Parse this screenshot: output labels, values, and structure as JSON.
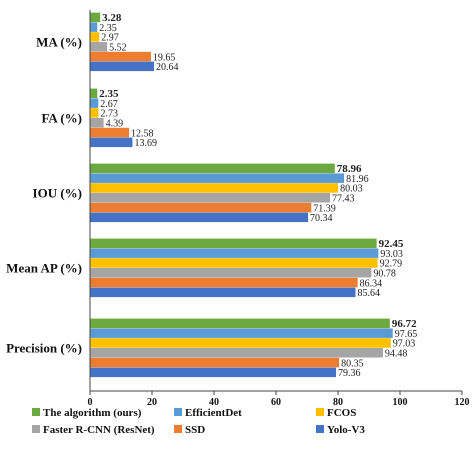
{
  "chart_data": {
    "type": "bar",
    "orientation": "horizontal",
    "categories": [
      "MA (%)",
      "FA (%)",
      "IOU (%)",
      "Mean AP (%)",
      "Precision (%)"
    ],
    "series": [
      {
        "name": "The algorithm (ours)",
        "color": "#6aaa3f",
        "values": [
          3.28,
          2.35,
          78.96,
          92.45,
          96.72
        ]
      },
      {
        "name": "EfficientDet",
        "color": "#5b9bd5",
        "values": [
          2.35,
          2.67,
          81.96,
          93.03,
          97.65
        ]
      },
      {
        "name": "FCOS",
        "color": "#ffc000",
        "values": [
          2.97,
          2.73,
          80.03,
          92.79,
          97.03
        ]
      },
      {
        "name": "Faster R-CNN (ResNet)",
        "color": "#a5a5a5",
        "values": [
          5.52,
          4.39,
          77.43,
          90.78,
          94.48
        ]
      },
      {
        "name": "SSD",
        "color": "#ed7d31",
        "values": [
          19.65,
          12.58,
          71.39,
          86.34,
          80.35
        ]
      },
      {
        "name": "Yolo-V3",
        "color": "#4472c4",
        "values": [
          20.64,
          13.69,
          70.34,
          85.64,
          79.36
        ]
      }
    ],
    "value_labels": [
      [
        "3.28",
        "2.35",
        "2.97",
        "5.52",
        "19.65",
        "20.64"
      ],
      [
        "2.35",
        "2.67",
        "2.73",
        "4.39",
        "12.58",
        "13.69"
      ],
      [
        "78.96",
        "81.96",
        "80.03",
        "77.43",
        "71.39",
        "70.34"
      ],
      [
        "92.45",
        "93.03",
        "92.79",
        "90.78",
        "86.34",
        "85.64"
      ],
      [
        "96.72",
        "97.65",
        "97.03",
        "94.48",
        "80.35",
        "79.36"
      ]
    ],
    "xlim": [
      0,
      120
    ],
    "xticks": [
      "0",
      "20",
      "40",
      "60",
      "80",
      "100",
      "120"
    ],
    "xtick_values": [
      0,
      20,
      40,
      60,
      80,
      100,
      120
    ],
    "grid": false,
    "legend_position": "bottom"
  }
}
